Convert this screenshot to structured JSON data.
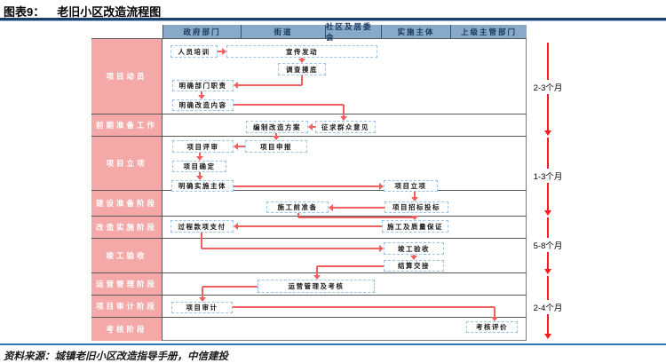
{
  "figure": {
    "tag": "图表9：",
    "title": "老旧小区改造流程图",
    "source": "资料来源：城镇老旧小区改造指导手册，中信建投"
  },
  "colors": {
    "title_rule_navy": "#17406B",
    "header_fill": "#89A9C9",
    "header_text": "#17365D",
    "row_label_fill": "#F4A8A8",
    "row_label_text": "#FFFFFF",
    "node_border_dashed_blue": "#9DC3E6",
    "connector_red": "#F15F5F",
    "timeline_red": "#FF1A1A",
    "source_rule_blue": "#2E75B6"
  },
  "table": {
    "columns": [
      "政府部门",
      "街道",
      "社区及居委会",
      "实施主体",
      "上级主管部门"
    ],
    "rows": [
      "项目动员",
      "前期准备工作",
      "项目立项",
      "建设准备阶段",
      "改造实施阶段",
      "竣工验收",
      "运营管理阶段",
      "项目审计阶段",
      "考核阶段"
    ]
  },
  "nodes": [
    {
      "id": "personnel-training",
      "label": "人员培训"
    },
    {
      "id": "publicity-launch",
      "label": "宣传发动"
    },
    {
      "id": "survey",
      "label": "调查摸底"
    },
    {
      "id": "clarify-duties",
      "label": "明确部门职责"
    },
    {
      "id": "clarify-content",
      "label": "明确改造内容"
    },
    {
      "id": "prepare-plan",
      "label": "编制改造方案"
    },
    {
      "id": "solicit-opinions",
      "label": "征求群众意见"
    },
    {
      "id": "project-review",
      "label": "项目评审"
    },
    {
      "id": "project-application",
      "label": "项目申报"
    },
    {
      "id": "project-confirm",
      "label": "项目确定"
    },
    {
      "id": "clarify-implementer",
      "label": "明确实施主体"
    },
    {
      "id": "project-approval",
      "label": "项目立项"
    },
    {
      "id": "pre-construction",
      "label": "施工前准备"
    },
    {
      "id": "bidding",
      "label": "项目招标投标"
    },
    {
      "id": "progress-payment",
      "label": "过程款项支付"
    },
    {
      "id": "construction-quality",
      "label": "施工及质量保证"
    },
    {
      "id": "completion-acceptance",
      "label": "竣工验收"
    },
    {
      "id": "settlement-handover",
      "label": "结算交接"
    },
    {
      "id": "operation-assessment",
      "label": "运营管理及考核"
    },
    {
      "id": "project-audit",
      "label": "项目审计"
    },
    {
      "id": "assessment-evaluation",
      "label": "考核评价"
    }
  ],
  "timeline_labels": [
    "2-3个月",
    "1-3个月",
    "5-8个月",
    "2-4个月"
  ]
}
